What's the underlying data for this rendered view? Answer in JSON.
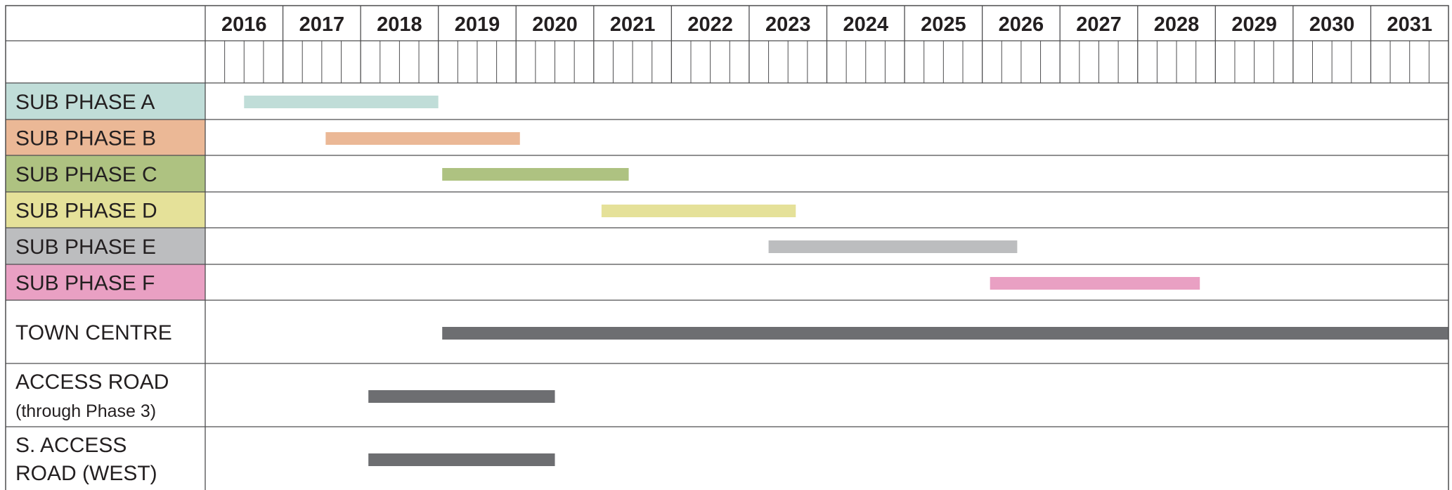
{
  "chart_data": {
    "type": "gantt",
    "years": [
      "2016",
      "2017",
      "2018",
      "2019",
      "2020",
      "2021",
      "2022",
      "2023",
      "2024",
      "2025",
      "2026",
      "2027",
      "2028",
      "2029",
      "2030",
      "2031"
    ],
    "x_domain": [
      2015.5,
      2031.5
    ],
    "subdivisions_per_year": 4,
    "tasks": [
      {
        "label_lines": [
          "SUB PHASE A"
        ],
        "start": 2016.0,
        "end": 2018.5,
        "bar_color": "#c0ddd8",
        "label_bg": "#c0ddd8"
      },
      {
        "label_lines": [
          "SUB PHASE B"
        ],
        "start": 2017.05,
        "end": 2019.55,
        "bar_color": "#ebb896",
        "label_bg": "#ebb896"
      },
      {
        "label_lines": [
          "SUB PHASE C"
        ],
        "start": 2018.55,
        "end": 2020.95,
        "bar_color": "#aec281",
        "label_bg": "#aec281"
      },
      {
        "label_lines": [
          "SUB PHASE D"
        ],
        "start": 2020.6,
        "end": 2023.1,
        "bar_color": "#e5e199",
        "label_bg": "#e5e199"
      },
      {
        "label_lines": [
          "SUB PHASE E"
        ],
        "start": 2022.75,
        "end": 2025.95,
        "bar_color": "#bcbdbf",
        "label_bg": "#bcbdbf"
      },
      {
        "label_lines": [
          "SUB PHASE F"
        ],
        "start": 2025.6,
        "end": 2028.3,
        "bar_color": "#e9a0c3",
        "label_bg": "#e9a0c3"
      },
      {
        "label_lines": [
          "TOWN CENTRE"
        ],
        "start": 2018.55,
        "end": 2031.5,
        "bar_color": "#6d6e71",
        "label_bg": "#ffffff"
      },
      {
        "label_lines": [
          "ACCESS ROAD",
          "(through Phase 3)"
        ],
        "start": 2017.6,
        "end": 2020.0,
        "bar_color": "#6d6e71",
        "label_bg": "#ffffff"
      },
      {
        "label_lines": [
          "S. ACCESS",
          "ROAD (WEST)"
        ],
        "start": 2017.6,
        "end": 2020.0,
        "bar_color": "#6d6e71",
        "label_bg": "#ffffff"
      }
    ]
  }
}
